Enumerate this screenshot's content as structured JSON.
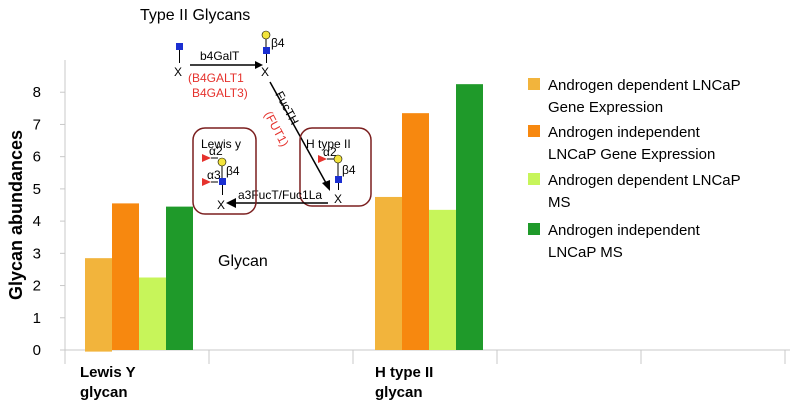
{
  "chart_data": {
    "type": "bar",
    "title": "Type II Glycans",
    "ylabel": "Glycan abundances",
    "ylim": [
      0,
      9
    ],
    "yticks": [
      0,
      1,
      2,
      3,
      4,
      5,
      6,
      7,
      8
    ],
    "grid": false,
    "legend_position": "right",
    "categories": [
      [
        "Lewis Y",
        "glycan"
      ],
      [
        "H type II",
        "glycan"
      ]
    ],
    "series": [
      {
        "name": [
          "Androgen dependent  LNCaP",
          "Gene Expression"
        ],
        "color": "#f2b43c",
        "values": [
          2.85,
          4.75
        ],
        "baseline": -0.05
      },
      {
        "name": [
          "Androgen independent",
          "LNCaP Gene Expression"
        ],
        "color": "#f7880f",
        "values": [
          4.55,
          7.35
        ],
        "baseline": 0
      },
      {
        "name": [
          "Androgen dependent LNCaP",
          "MS"
        ],
        "color": "#c7f55a",
        "values": [
          2.25,
          4.35
        ],
        "baseline": 0
      },
      {
        "name": [
          "Androgen independent",
          "LNCaP MS"
        ],
        "color": "#1f9a2a",
        "values": [
          4.45,
          8.25
        ],
        "baseline": 0
      }
    ],
    "annotations": {
      "inset_label": "Glycan",
      "enzyme_1": "b4GalT",
      "enzyme_1_genes": [
        "(B4GALT1",
        "B4GALT3)"
      ],
      "enzyme_2": "FucTH",
      "enzyme_2_gene": "(FUT1)",
      "enzyme_3": "a3FucT/Fuc1La",
      "box_1_title": "Lewis y",
      "box_2_title": "H type II",
      "linkage_a2": "α2",
      "linkage_a3": "α3",
      "linkage_b4": "β4",
      "reducing_end": "X"
    }
  }
}
